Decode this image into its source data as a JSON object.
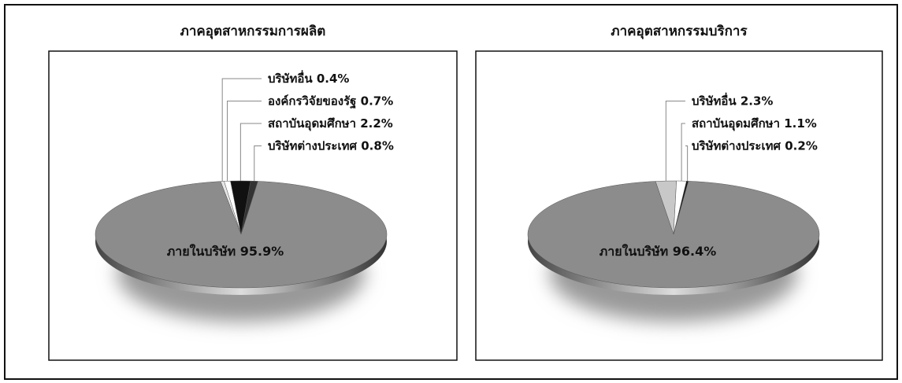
{
  "chart_data": [
    {
      "type": "pie",
      "title": "ภาคอุตสาหกรรมการผลิต",
      "categories": [
        "บริษัทอื่น",
        "องค์กรวิจัยของรัฐ",
        "สถาบันอุดมศึกษา",
        "บริษัทต่างประเทศ",
        "ภายในบริษัท"
      ],
      "values": [
        0.4,
        0.7,
        2.2,
        0.8,
        95.9
      ],
      "value_labels": [
        "0.4%",
        "0.7%",
        "2.2%",
        "0.8%",
        "95.9%"
      ],
      "colors": [
        "#e6e6e6",
        "#ffffff",
        "#111111",
        "#333333",
        "#8c8c8c"
      ]
    },
    {
      "type": "pie",
      "title": "ภาคอุตสาหกรรมบริการ",
      "categories": [
        "บริษัทอื่น",
        "สถาบันอุดมศึกษา",
        "บริษัทต่างประเทศ",
        "ภายในบริษัท"
      ],
      "values": [
        2.3,
        1.1,
        0.2,
        96.4
      ],
      "value_labels": [
        "2.3%",
        "1.1%",
        "0.2%",
        "96.4%"
      ],
      "colors": [
        "#c8c8c8",
        "#ffffff",
        "#111111",
        "#8c8c8c"
      ]
    }
  ]
}
